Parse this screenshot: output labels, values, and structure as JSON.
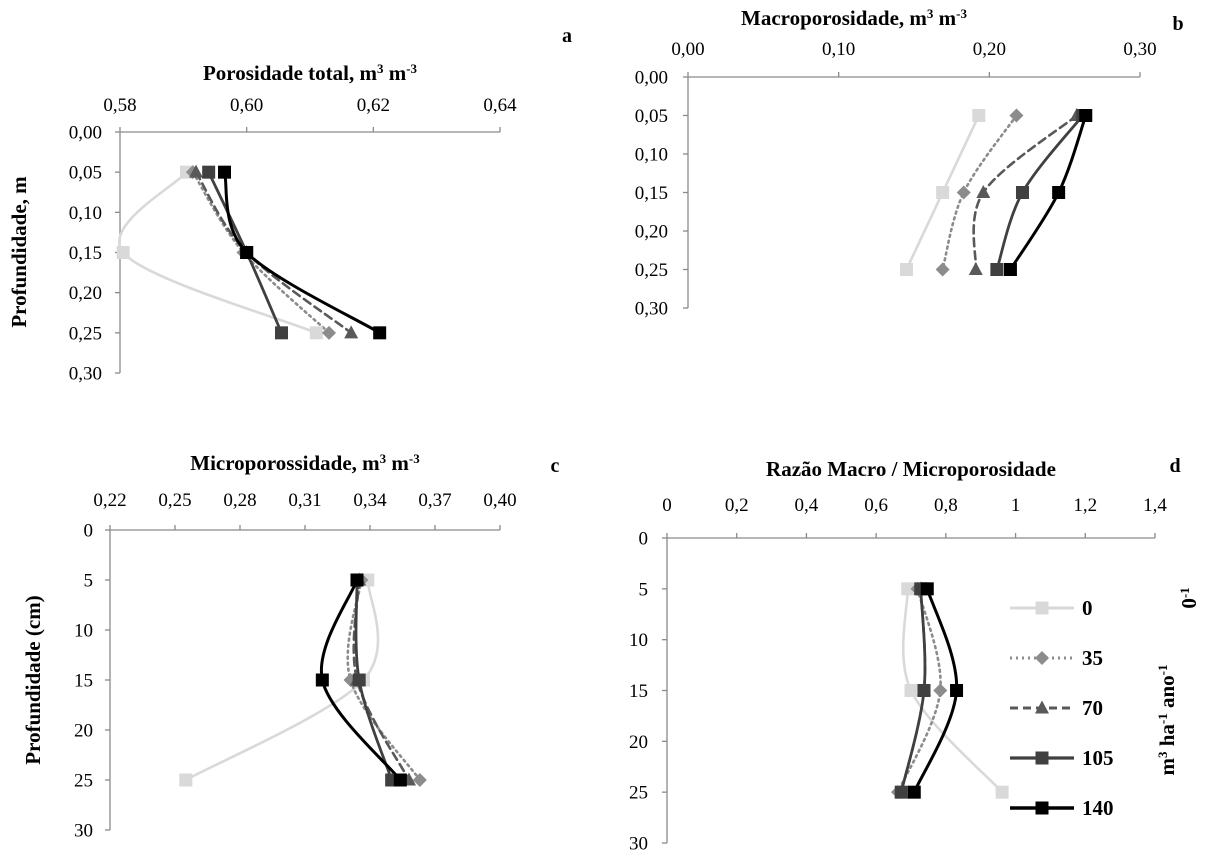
{
  "series_styles": [
    {
      "name": "0",
      "color": "#d9d9d9",
      "dash": "",
      "marker": "square",
      "width": 2.6
    },
    {
      "name": "35",
      "color": "#8c8c8c",
      "dash": "2,4",
      "marker": "diamond",
      "width": 2.6
    },
    {
      "name": "70",
      "color": "#595959",
      "dash": "8,5",
      "marker": "triangle",
      "width": 2.6
    },
    {
      "name": "105",
      "color": "#404040",
      "dash": "",
      "marker": "square",
      "width": 2.8
    },
    {
      "name": "140",
      "color": "#000000",
      "dash": "",
      "marker": "square",
      "width": 3
    }
  ],
  "legend": {
    "title": "m³ ha⁻¹ ano⁻¹",
    "side_label": "0⁻¹",
    "placement": "right of panel d"
  },
  "chart_data": [
    {
      "panel": "a",
      "type": "line",
      "title": "Porosidade total, m³ m⁻³",
      "xlabel": "Porosidade total, m³ m⁻³",
      "ylabel": "Profundidade, m",
      "xlim": [
        0.58,
        0.64
      ],
      "ylim": [
        0.0,
        0.3
      ],
      "x_ticks": [
        "0,58",
        "0,60",
        "0,62",
        "0,64"
      ],
      "y_ticks": [
        "0,00",
        "0,05",
        "0,10",
        "0,15",
        "0,20",
        "0,25",
        "0,30"
      ],
      "depths": [
        0.05,
        0.15,
        0.25
      ],
      "series": [
        {
          "name": "0",
          "values": [
            0.5905,
            0.5805,
            0.611
          ]
        },
        {
          "name": "35",
          "values": [
            0.5915,
            0.5995,
            0.613
          ]
        },
        {
          "name": "70",
          "values": [
            0.592,
            0.6,
            0.6165
          ]
        },
        {
          "name": "105",
          "values": [
            0.594,
            0.6,
            0.6055
          ]
        },
        {
          "name": "140",
          "values": [
            0.5965,
            0.6,
            0.621
          ]
        }
      ]
    },
    {
      "panel": "b",
      "type": "line",
      "title": "Macroporosidade, m³ m⁻³",
      "xlabel": "Macroporosidade, m³ m⁻³",
      "ylabel": "",
      "xlim": [
        0.0,
        0.3
      ],
      "ylim": [
        0.0,
        0.3
      ],
      "x_ticks": [
        "0,00",
        "0,10",
        "0,20",
        "0,30"
      ],
      "y_ticks": [
        "0,00",
        "0,05",
        "0,10",
        "0,15",
        "0,20",
        "0,25",
        "0,30"
      ],
      "depths": [
        0.05,
        0.15,
        0.25
      ],
      "series": [
        {
          "name": "0",
          "values": [
            0.193,
            0.169,
            0.145
          ]
        },
        {
          "name": "35",
          "values": [
            0.218,
            0.183,
            0.169
          ]
        },
        {
          "name": "70",
          "values": [
            0.258,
            0.196,
            0.191
          ]
        },
        {
          "name": "105",
          "values": [
            0.262,
            0.222,
            0.205
          ]
        },
        {
          "name": "140",
          "values": [
            0.264,
            0.246,
            0.214
          ]
        }
      ]
    },
    {
      "panel": "c",
      "type": "line",
      "title": "Microporossidade, m³ m⁻³",
      "xlabel": "Microporossidade, m³ m⁻³",
      "ylabel": "Profundidade (cm)",
      "xlim": [
        0.22,
        0.4
      ],
      "ylim": [
        0,
        30
      ],
      "x_ticks": [
        "0,22",
        "0,25",
        "0,28",
        "0,31",
        "0,34",
        "0,37",
        "0,40"
      ],
      "y_ticks": [
        "0",
        "5",
        "10",
        "15",
        "20",
        "25",
        "30"
      ],
      "depths": [
        5,
        15,
        25
      ],
      "series": [
        {
          "name": "0",
          "values": [
            0.339,
            0.337,
            0.255
          ]
        },
        {
          "name": "35",
          "values": [
            0.336,
            0.331,
            0.363
          ]
        },
        {
          "name": "70",
          "values": [
            0.335,
            0.334,
            0.358
          ]
        },
        {
          "name": "105",
          "values": [
            0.334,
            0.335,
            0.35
          ]
        },
        {
          "name": "140",
          "values": [
            0.334,
            0.318,
            0.354
          ]
        }
      ]
    },
    {
      "panel": "d",
      "type": "line",
      "title": "Razão Macro / Microporosidade",
      "xlabel": "Razão Macro / Microporosidade",
      "ylabel": "",
      "xlim": [
        0,
        1.5
      ],
      "ylim": [
        0,
        30
      ],
      "x_ticks": [
        "0",
        "0,2",
        "0,4",
        "0,6",
        "0,8",
        "1",
        "1,2",
        "1,4"
      ],
      "y_ticks": [
        "0",
        "5",
        "10",
        "15",
        "20",
        "25",
        "30"
      ],
      "depths": [
        5,
        15,
        25
      ],
      "series": [
        {
          "name": "0",
          "values": [
            0.74,
            0.75,
            1.03
          ]
        },
        {
          "name": "35",
          "values": [
            0.77,
            0.84,
            0.71
          ]
        },
        {
          "name": "70",
          "values": [
            0.78,
            0.79,
            0.72
          ]
        },
        {
          "name": "105",
          "values": [
            0.78,
            0.79,
            0.72
          ]
        },
        {
          "name": "140",
          "values": [
            0.8,
            0.89,
            0.76
          ]
        }
      ]
    }
  ]
}
